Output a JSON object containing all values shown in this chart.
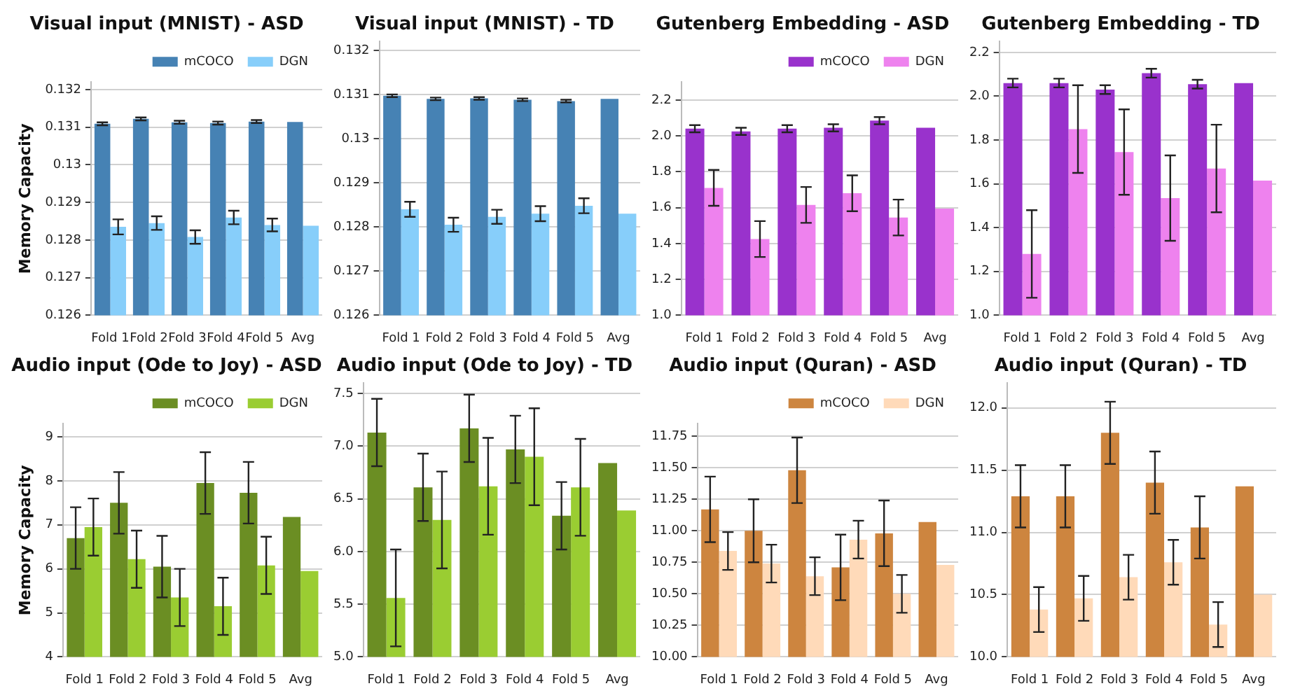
{
  "chart_data": [
    {
      "type": "bar",
      "title": "Visual input (MNIST) - ASD",
      "ylabel": "Memory Capacity",
      "categories": [
        "Fold 1",
        "Fold 2",
        "Fold 3",
        "Fold 4",
        "Fold 5",
        "Avg"
      ],
      "series": [
        {
          "name": "mCOCO",
          "color": "#4682b4",
          "values": [
            0.13109,
            0.13122,
            0.13113,
            0.13111,
            0.13115,
            0.13114
          ],
          "errors": [
            4e-05,
            4e-05,
            4e-05,
            4e-05,
            4e-05,
            null
          ]
        },
        {
          "name": "DGN",
          "color": "#87cefa",
          "values": [
            0.12835,
            0.12845,
            0.12808,
            0.1286,
            0.1284,
            0.12838
          ],
          "errors": [
            0.0002,
            0.00018,
            0.00018,
            0.00018,
            0.00017,
            null
          ]
        }
      ],
      "ylim": [
        0.126,
        0.1322
      ],
      "yticks": [
        0.126,
        0.127,
        0.128,
        0.129,
        0.13,
        0.131,
        0.132
      ],
      "grid": "y",
      "legend": "top right"
    },
    {
      "type": "bar",
      "title": "Visual input (MNIST) - TD",
      "categories": [
        "Fold 1",
        "Fold 2",
        "Fold 3",
        "Fold 4",
        "Fold 5",
        "Avg"
      ],
      "series": [
        {
          "color": "#4682b4",
          "values": [
            0.13097,
            0.1309,
            0.13091,
            0.13088,
            0.13085,
            0.1309
          ],
          "errors": [
            3e-05,
            3e-05,
            3e-05,
            3e-05,
            3e-05,
            null
          ]
        },
        {
          "color": "#87cefa",
          "values": [
            0.1284,
            0.12805,
            0.12823,
            0.1283,
            0.12848,
            0.1283
          ],
          "errors": [
            0.00017,
            0.00016,
            0.00016,
            0.00017,
            0.00017,
            null
          ]
        }
      ],
      "ylim": [
        0.126,
        0.1322
      ],
      "yticks": [
        0.126,
        0.127,
        0.128,
        0.129,
        0.13,
        0.131,
        0.132
      ],
      "grid": "y"
    },
    {
      "type": "bar",
      "title": "Gutenberg Embedding - ASD",
      "categories": [
        "Fold 1",
        "Fold 2",
        "Fold 3",
        "Fold 4",
        "Fold 5",
        "Avg"
      ],
      "series": [
        {
          "name": "mCOCO",
          "color": "#9932cc",
          "values": [
            2.04,
            2.025,
            2.04,
            2.045,
            2.085,
            2.045
          ],
          "errors": [
            0.02,
            0.02,
            0.02,
            0.02,
            0.02,
            null
          ]
        },
        {
          "name": "DGN",
          "color": "#ee82ee",
          "values": [
            1.71,
            1.425,
            1.615,
            1.68,
            1.545,
            1.595
          ],
          "errors": [
            0.1,
            0.1,
            0.1,
            0.1,
            0.1,
            null
          ]
        }
      ],
      "ylim": [
        1.0,
        2.3
      ],
      "yticks": [
        {
          "value": 1,
          "label": "1.0"
        },
        1.2,
        1.4,
        1.6,
        1.8,
        {
          "value": 2,
          "label": "2.0"
        },
        2.2
      ],
      "grid": "y",
      "legend": "top right"
    },
    {
      "type": "bar",
      "title": "Gutenberg Embedding - TD",
      "categories": [
        "Fold 1",
        "Fold 2",
        "Fold 3",
        "Fold 4",
        "Fold 5",
        "Avg"
      ],
      "series": [
        {
          "color": "#9932cc",
          "values": [
            2.06,
            2.06,
            2.03,
            2.105,
            2.055,
            2.06
          ],
          "errors": [
            0.02,
            0.02,
            0.02,
            0.02,
            0.02,
            null
          ]
        },
        {
          "color": "#ee82ee",
          "values": [
            1.28,
            1.85,
            1.745,
            1.535,
            1.67,
            1.615
          ],
          "errors": [
            0.2,
            0.2,
            0.195,
            0.195,
            0.2,
            null
          ]
        }
      ],
      "ylim": [
        1.0,
        2.25
      ],
      "yticks": [
        {
          "value": 1,
          "label": "1.0"
        },
        1.2,
        1.4,
        1.6,
        1.8,
        {
          "value": 2,
          "label": "2.0"
        },
        2.2
      ],
      "grid": "y"
    },
    {
      "type": "bar",
      "title": "Audio input (Ode to Joy) - ASD",
      "ylabel": "Memory Capacity",
      "categories": [
        "Fold 1",
        "Fold 2",
        "Fold 3",
        "Fold 4",
        "Fold 5",
        "Avg"
      ],
      "series": [
        {
          "name": "mCOCO",
          "color": "#6b8e23",
          "values": [
            6.7,
            7.5,
            6.05,
            7.95,
            7.73,
            7.18
          ],
          "errors": [
            0.7,
            0.7,
            0.7,
            0.7,
            0.7,
            null
          ]
        },
        {
          "name": "DGN",
          "color": "#9acd32",
          "values": [
            6.95,
            6.22,
            5.35,
            5.15,
            6.08,
            5.95
          ],
          "errors": [
            0.65,
            0.65,
            0.65,
            0.65,
            0.65,
            null
          ]
        }
      ],
      "ylim": [
        4,
        9.3
      ],
      "yticks": [
        4,
        5,
        6,
        7,
        8,
        9
      ],
      "grid": "y",
      "legend": "top right"
    },
    {
      "type": "bar",
      "title": "Audio input (Ode to Joy) - TD",
      "categories": [
        "Fold 1",
        "Fold 2",
        "Fold 3",
        "Fold 4",
        "Fold 5",
        "Avg"
      ],
      "series": [
        {
          "color": "#6b8e23",
          "values": [
            7.13,
            6.61,
            7.17,
            6.97,
            6.34,
            6.84
          ],
          "errors": [
            0.32,
            0.32,
            0.32,
            0.32,
            0.32,
            null
          ]
        },
        {
          "color": "#9acd32",
          "values": [
            5.56,
            6.3,
            6.62,
            6.9,
            6.61,
            6.39
          ],
          "errors": [
            0.46,
            0.46,
            0.46,
            0.46,
            0.46,
            null
          ]
        }
      ],
      "ylim": [
        5.0,
        7.6
      ],
      "yticks": [
        {
          "value": 5,
          "label": "5.0"
        },
        5.5,
        {
          "value": 6,
          "label": "6.0"
        },
        6.5,
        {
          "value": 7,
          "label": "7.0"
        },
        7.5
      ],
      "grid": "y"
    },
    {
      "type": "bar",
      "title": "Audio input (Quran) - ASD",
      "categories": [
        "Fold 1",
        "Fold 2",
        "Fold 3",
        "Fold 4",
        "Fold 5",
        "Avg"
      ],
      "series": [
        {
          "name": "mCOCO",
          "color": "#cd853f",
          "values": [
            11.17,
            11.0,
            11.48,
            10.71,
            10.98,
            11.07
          ],
          "errors": [
            0.26,
            0.25,
            0.26,
            0.26,
            0.26,
            null
          ]
        },
        {
          "name": "DGN",
          "color": "#ffdab9",
          "values": [
            10.84,
            10.74,
            10.64,
            10.93,
            10.5,
            10.73
          ],
          "errors": [
            0.15,
            0.15,
            0.15,
            0.15,
            0.15,
            null
          ]
        }
      ],
      "ylim": [
        10,
        11.85
      ],
      "yticks": [
        {
          "value": 10,
          "label": "10.00"
        },
        10.25,
        {
          "value": 10.5,
          "label": "10.50"
        },
        10.75,
        {
          "value": 11,
          "label": "11.00"
        },
        11.25,
        {
          "value": 11.5,
          "label": "11.50"
        },
        11.75
      ],
      "grid": "y",
      "legend": "top right"
    },
    {
      "type": "bar",
      "title": "Audio input (Quran) - TD",
      "categories": [
        "Fold 1",
        "Fold 2",
        "Fold 3",
        "Fold 4",
        "Fold 5",
        "Avg"
      ],
      "series": [
        {
          "color": "#cd853f",
          "values": [
            11.29,
            11.29,
            11.8,
            11.4,
            11.04,
            11.37
          ],
          "errors": [
            0.25,
            0.25,
            0.25,
            0.25,
            0.25,
            null
          ]
        },
        {
          "color": "#ffdab9",
          "values": [
            10.38,
            10.47,
            10.64,
            10.76,
            10.26,
            10.5
          ],
          "errors": [
            0.18,
            0.18,
            0.18,
            0.18,
            0.18,
            null
          ]
        }
      ],
      "ylim": [
        10,
        12.2
      ],
      "yticks": [
        {
          "value": 10,
          "label": "10.0"
        },
        10.5,
        {
          "value": 11,
          "label": "11.0"
        },
        11.5,
        {
          "value": 12,
          "label": "12.0"
        }
      ],
      "grid": "y"
    }
  ]
}
